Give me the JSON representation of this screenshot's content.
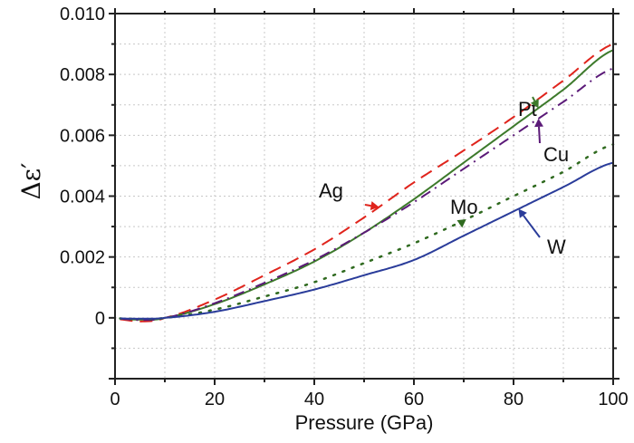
{
  "chart_data": {
    "type": "line",
    "title": "",
    "xlabel": "Pressure (GPa)",
    "ylabel": "Δε′",
    "xlim": [
      0,
      100
    ],
    "ylim": [
      -0.002,
      0.01
    ],
    "xticks": [
      0,
      20,
      40,
      60,
      80,
      100
    ],
    "xtick_labels": [
      "0",
      "20",
      "40",
      "60",
      "80",
      "100"
    ],
    "yticks": [
      0,
      0.002,
      0.004,
      0.006,
      0.008,
      0.01
    ],
    "ytick_labels": [
      "0",
      "0.002",
      "0.004",
      "0.006",
      "0.008",
      "0.010"
    ],
    "grid": true,
    "legend": "none (inline arrow annotations)",
    "x": [
      1,
      5,
      10,
      20,
      30,
      40,
      50,
      60,
      70,
      80,
      90,
      100
    ],
    "series": [
      {
        "name": "Ag",
        "style": "dashed",
        "color": "#e0241c",
        "values": [
          -5e-05,
          -0.00012,
          0.0,
          0.0006,
          0.0014,
          0.00225,
          0.0033,
          0.00445,
          0.0055,
          0.0066,
          0.0078,
          0.009
        ]
      },
      {
        "name": "Pt",
        "style": "solid",
        "color": "#3d7a2b",
        "values": [
          -3e-05,
          -6e-05,
          0.0,
          0.00045,
          0.0011,
          0.00185,
          0.0028,
          0.0039,
          0.0051,
          0.0063,
          0.0075,
          0.0088
        ]
      },
      {
        "name": "Cu",
        "style": "dashdot",
        "color": "#5b1a78",
        "values": [
          -3e-05,
          -7e-05,
          0.0,
          0.00048,
          0.00115,
          0.0019,
          0.0028,
          0.0038,
          0.0049,
          0.006,
          0.0071,
          0.0082
        ]
      },
      {
        "name": "Mo",
        "style": "dotted",
        "color": "#2f6a1f",
        "values": [
          -2e-05,
          -4e-05,
          0.0,
          0.00027,
          0.0007,
          0.00117,
          0.0018,
          0.00245,
          0.0032,
          0.004,
          0.0048,
          0.0057
        ]
      },
      {
        "name": "W",
        "style": "solid",
        "color": "#2a3c9a",
        "values": [
          -2e-05,
          -3e-05,
          0.0,
          0.0002,
          0.00055,
          0.00093,
          0.0014,
          0.0019,
          0.0027,
          0.0035,
          0.0043,
          0.0051
        ]
      }
    ],
    "annotations": [
      {
        "label": "Ag",
        "target_x": 53,
        "color": "#e0241c"
      },
      {
        "label": "Pt",
        "target_x": 85,
        "color": "#3d7a2b"
      },
      {
        "label": "Cu",
        "target_x": 85,
        "color": "#5b1a78"
      },
      {
        "label": "Mo",
        "target_x": 70.5,
        "color": "#2f6a1f"
      },
      {
        "label": "W",
        "target_x": 81,
        "color": "#2a3c9a"
      }
    ]
  }
}
